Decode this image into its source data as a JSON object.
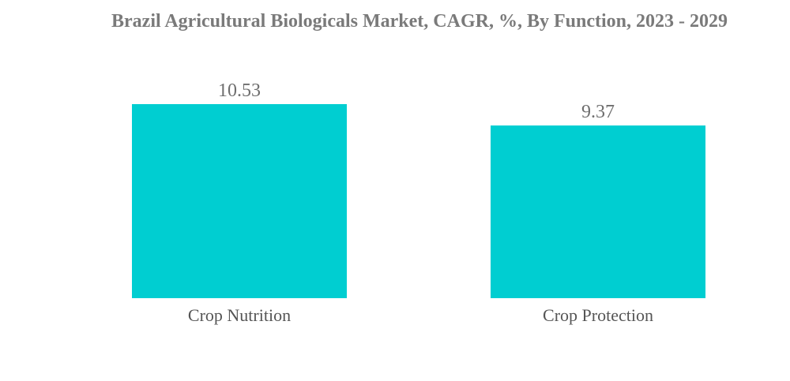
{
  "chart_data": {
    "type": "bar",
    "title": "Brazil Agricultural Biologicals Market, CAGR, %, By Function, 2023 - 2029",
    "categories": [
      "Crop Nutrition",
      "Crop Protection"
    ],
    "values": [
      10.53,
      9.37
    ],
    "data_labels": [
      "10.53",
      "9.37"
    ],
    "xlabel": "",
    "ylabel": "",
    "ylim": [
      0,
      10.53
    ],
    "grid": false,
    "legend": "none",
    "bar_color": "#00CED1"
  }
}
